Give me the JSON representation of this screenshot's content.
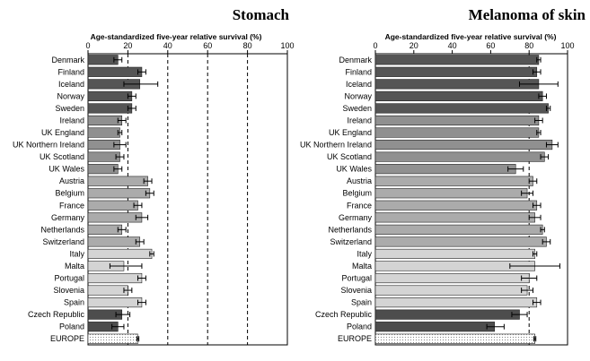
{
  "chart_data": [
    {
      "type": "bar",
      "orientation": "horizontal",
      "title": "Stomach",
      "xlabel": "Age-standardized five-year relative survival (%)",
      "xlim": [
        0,
        100
      ],
      "xticks": [
        0,
        20,
        40,
        60,
        80,
        100
      ],
      "reference_lines": [
        20,
        40,
        60,
        80
      ],
      "grid": false,
      "categories": [
        "Denmark",
        "Finland",
        "Iceland",
        "Norway",
        "Sweden",
        "Ireland",
        "UK England",
        "UK Northern Ireland",
        "UK Scotland",
        "UK Wales",
        "Austria",
        "Belgium",
        "France",
        "Germany",
        "Netherlands",
        "Switzerland",
        "Italy",
        "Malta",
        "Portugal",
        "Slovenia",
        "Spain",
        "Czech Republic",
        "Poland",
        "EUROPE"
      ],
      "values": [
        15,
        27,
        26,
        22,
        22,
        17,
        16,
        16,
        16,
        15,
        30,
        31,
        25,
        27,
        17,
        26,
        32,
        18,
        27,
        20,
        27,
        17,
        15,
        25
      ],
      "error_low": [
        13,
        25,
        18,
        20,
        20,
        15,
        15,
        13,
        14,
        13,
        28,
        29,
        23,
        24,
        15,
        24,
        31,
        11,
        25,
        18,
        25,
        14,
        12,
        24.5
      ],
      "error_high": [
        17,
        29,
        35,
        24,
        24,
        19,
        17,
        19,
        18,
        17,
        32,
        33,
        27,
        30,
        19,
        28,
        33,
        27,
        29,
        22,
        29,
        21,
        18,
        25.5
      ],
      "group_colors": [
        "#555555",
        "#555555",
        "#555555",
        "#555555",
        "#555555",
        "#909090",
        "#909090",
        "#909090",
        "#909090",
        "#909090",
        "#ababab",
        "#ababab",
        "#ababab",
        "#ababab",
        "#ababab",
        "#ababab",
        "#d4d4d4",
        "#d4d4d4",
        "#d4d4d4",
        "#d4d4d4",
        "#d4d4d4",
        "#4d4d4d",
        "#4d4d4d",
        "#ffffff"
      ]
    },
    {
      "type": "bar",
      "orientation": "horizontal",
      "title": "Melanoma of  skin",
      "xlabel": "Age-standardized five-year relative survival (%)",
      "xlim": [
        0,
        100
      ],
      "xticks": [
        0,
        20,
        40,
        60,
        80,
        100
      ],
      "reference_lines": [
        80
      ],
      "grid": false,
      "categories": [
        "Denmark",
        "Finland",
        "Iceland",
        "Norway",
        "Sweden",
        "Ireland",
        "UK England",
        "UK Northern Ireland",
        "UK Scotland",
        "UK Wales",
        "Austria",
        "Belgium",
        "France",
        "Germany",
        "Netherlands",
        "Switzerland",
        "Italy",
        "Malta",
        "Portugal",
        "Slovenia",
        "Spain",
        "Czech Republic",
        "Poland",
        "EUROPE"
      ],
      "values": [
        85,
        84,
        85,
        87,
        90,
        85,
        85,
        92,
        88,
        73,
        82,
        79,
        84,
        83,
        87,
        89,
        83,
        83,
        80,
        79,
        84,
        75,
        62,
        83
      ],
      "error_low": [
        84,
        82,
        75,
        85,
        89,
        83,
        84,
        89,
        86,
        69,
        80,
        76,
        82,
        80,
        86,
        87,
        82,
        70,
        76,
        76,
        82,
        71,
        58,
        82.5
      ],
      "error_high": [
        86,
        86,
        95,
        89,
        91,
        87,
        86,
        95,
        90,
        77,
        84,
        82,
        86,
        86,
        88,
        91,
        84,
        96,
        84,
        82,
        86,
        79,
        67,
        83.5
      ],
      "group_colors": [
        "#555555",
        "#555555",
        "#555555",
        "#555555",
        "#555555",
        "#909090",
        "#909090",
        "#909090",
        "#909090",
        "#909090",
        "#ababab",
        "#ababab",
        "#ababab",
        "#ababab",
        "#ababab",
        "#ababab",
        "#d4d4d4",
        "#d4d4d4",
        "#d4d4d4",
        "#d4d4d4",
        "#d4d4d4",
        "#4d4d4d",
        "#4d4d4d",
        "#ffffff"
      ]
    }
  ]
}
